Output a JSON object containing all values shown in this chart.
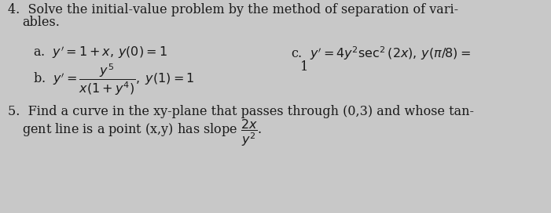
{
  "background_color": "#c8c8c8",
  "text_color": "#1a1a1a",
  "font_size": 11.5,
  "line1": "4.  Solve the initial-value problem by the method of separation of vari-",
  "line2": "    ables.",
  "item_a": "a.  $y' = 1 + x,\\, y(0) = 1$",
  "item_b": "b.  $y' = \\dfrac{y^5}{x(1+y^4)},\\; y(1) = 1$",
  "item_c1": "c.  $y' = 4y^2 \\sec^2(2x),\\, y(\\pi/8) =$",
  "item_c2": "1",
  "line5a": "5.  Find a curve in the xy-plane that passes through (0,3) and whose tan-",
  "line5b": "    gent line is a point (x,y) has slope $\\dfrac{2x}{y^2}$."
}
